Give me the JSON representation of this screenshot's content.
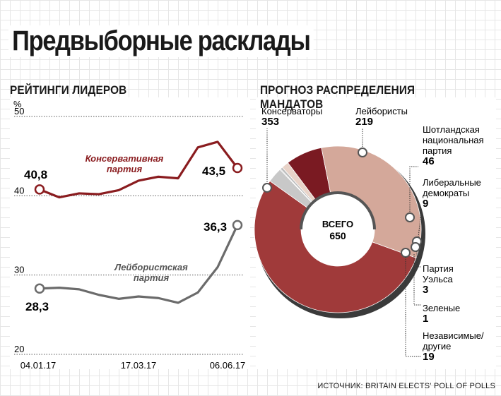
{
  "title": "Предвыборные расклады",
  "source": "ИСТОЧНИК: BRITAIN ELECTS' POLL OF POLLS",
  "chart_data": [
    {
      "type": "line",
      "title": "РЕЙТИНГИ ЛИДЕРОВ",
      "ylabel": "%",
      "ylim": [
        20,
        50
      ],
      "yticks": [
        20,
        30,
        40,
        50
      ],
      "x_tick_labels": [
        "04.01.17",
        "17.03.17",
        "06.06.17"
      ],
      "grid": "dotted horizontal",
      "series": [
        {
          "name": "Консервативная партия",
          "color": "#8a1c1f",
          "values": [
            40.8,
            39.8,
            40.3,
            40.2,
            40.7,
            41.9,
            42.4,
            42.2,
            46.1,
            46.8,
            43.5
          ],
          "start_label": "40,8",
          "end_label": "43,5"
        },
        {
          "name": "Лейбористская партия",
          "color": "#6b6b6b",
          "values": [
            28.3,
            28.4,
            28.2,
            27.5,
            27.0,
            27.3,
            27.1,
            26.5,
            27.8,
            31.0,
            36.3
          ],
          "start_label": "28,3",
          "end_label": "36,3"
        }
      ]
    },
    {
      "type": "pie",
      "title": "ПРОГНОЗ РАСПРЕДЕЛЕНИЯ МАНДАТОВ",
      "center_label": "ВСЕГО",
      "total": "650",
      "slices": [
        {
          "label": "Консерваторы",
          "value": 353,
          "value_label": "353",
          "color": "#a03a3a"
        },
        {
          "label": "Лейбористы",
          "value": 219,
          "value_label": "219",
          "color": "#d4a89a"
        },
        {
          "label": "Шотландская национальная партия",
          "value": 46,
          "value_label": "46",
          "color": "#7a1a22"
        },
        {
          "label": "Либеральные демократы",
          "value": 9,
          "value_label": "9",
          "color": "#e8d3c8"
        },
        {
          "label": "Партия Уэльса",
          "value": 3,
          "value_label": "3",
          "color": "#bdbdbd"
        },
        {
          "label": "Зеленые",
          "value": 1,
          "value_label": "1",
          "color": "#9a9a9a"
        },
        {
          "label": "Независимые/другие",
          "value": 19,
          "value_label": "19",
          "color": "#c8c8c8"
        }
      ]
    }
  ]
}
